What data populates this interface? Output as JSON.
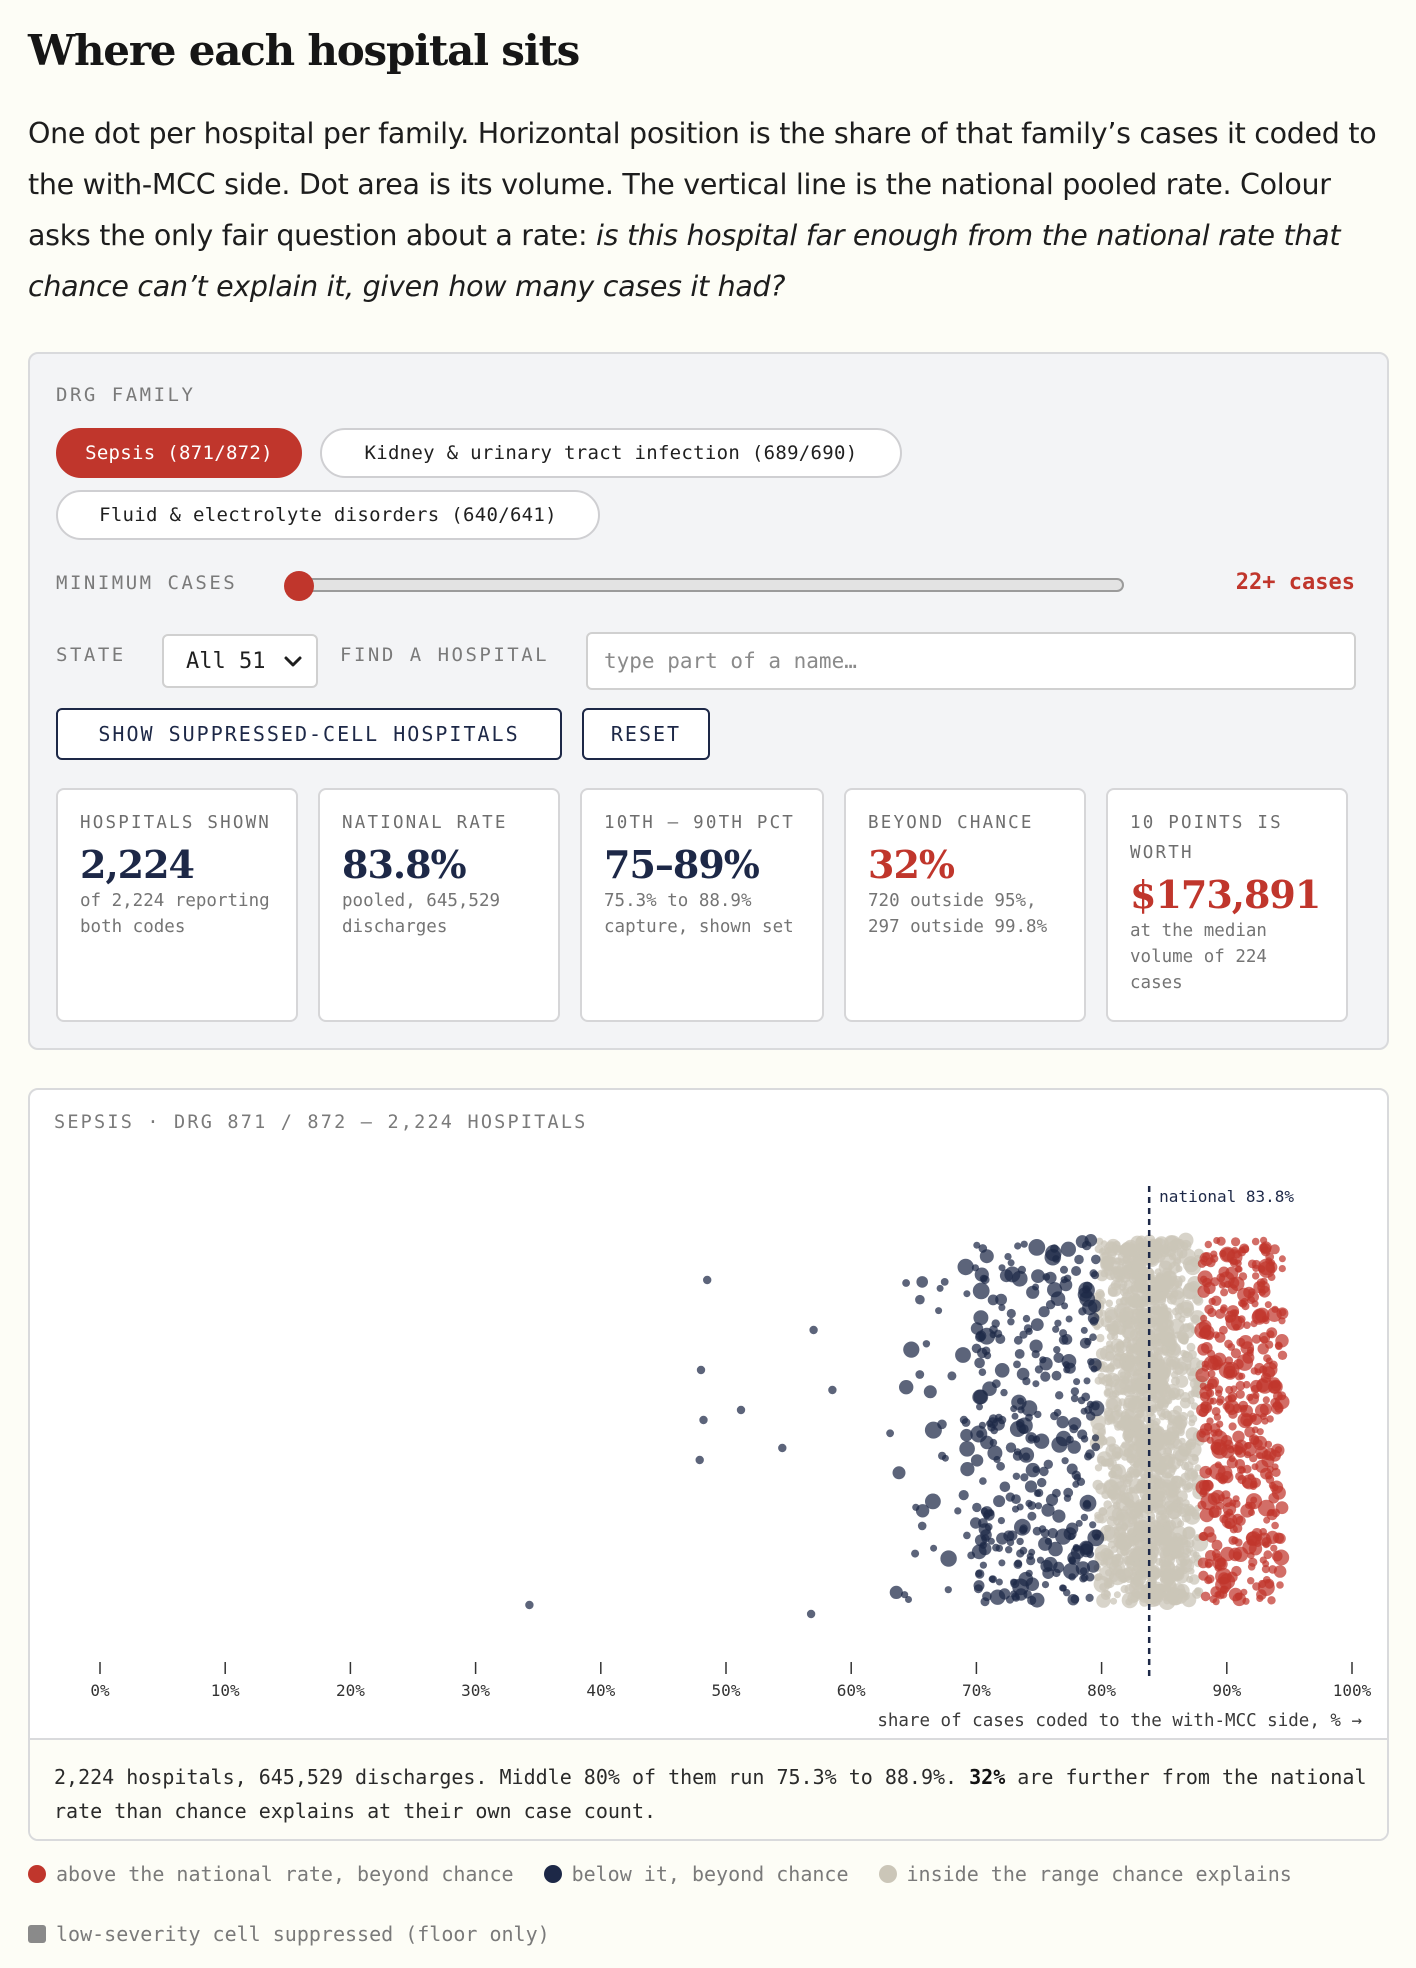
{
  "title": "Where each hospital sits",
  "lede": {
    "plain": "One dot per hospital per family. Horizontal position is the share of that family’s cases it coded to the with-MCC side. Dot area is its volume. The vertical line is the national pooled rate. Colour asks the only fair question about a rate: ",
    "emphasis": "is this hospital far enough from the national rate that chance can’t explain it, given how many cases it had?"
  },
  "controls": {
    "family_label": "DRG FAMILY",
    "families": [
      {
        "label": "Sepsis (871/872)",
        "active": true
      },
      {
        "label": "Kidney & urinary tract infection (689/690)",
        "active": false
      },
      {
        "label": "Fluid & electrolyte disorders (640/641)",
        "active": false
      }
    ],
    "min_cases_label": "MINIMUM CASES",
    "min_cases_value": "22+ cases",
    "min_cases_fraction": 0.0,
    "state_label": "STATE",
    "state_value": "All 51",
    "find_label": "FIND A HOSPITAL",
    "find_placeholder": "type part of a name…",
    "show_suppressed_label": "SHOW SUPPRESSED-CELL HOSPITALS",
    "reset_label": "RESET"
  },
  "stats": [
    {
      "label": "HOSPITALS SHOWN",
      "value": "2,224",
      "sub": "of 2,224 reporting both codes",
      "accent": false
    },
    {
      "label": "NATIONAL RATE",
      "value": "83.8%",
      "sub": "pooled, 645,529 discharges",
      "accent": false
    },
    {
      "label": "10TH – 90TH PCT",
      "value": "75–89%",
      "sub": "75.3% to 88.9% capture, shown set",
      "accent": false
    },
    {
      "label": "BEYOND CHANCE",
      "value": "32%",
      "sub": "720 outside 95%, 297 outside 99.8%",
      "accent": true
    },
    {
      "label": "10 POINTS IS WORTH",
      "value": "$173,891",
      "sub": "at the median volume of 224 cases",
      "accent": true
    }
  ],
  "chart": {
    "title": "SEPSIS · DRG 871 / 872 — 2,224 HOSPITALS",
    "summary_a": "2,224 hospitals, 645,529 discharges. Middle 80% of them run 75.3% to 88.9%. ",
    "summary_b": "32%",
    "summary_c": " are further from the national rate than chance explains at their own case count."
  },
  "chart_data": {
    "type": "scatter",
    "xlabel": "share of cases coded to the with-MCC side, % →",
    "xlim": [
      0,
      100
    ],
    "xticks": [
      "0%",
      "10%",
      "20%",
      "30%",
      "40%",
      "50%",
      "60%",
      "70%",
      "80%",
      "90%",
      "100%"
    ],
    "reference_line": {
      "x": 83.8,
      "label": "national 83.8%"
    },
    "n_hospitals": 2224,
    "outliers": [
      34.3,
      48.5,
      48.0,
      48.2,
      47.9,
      51.2,
      54.5,
      56.8,
      57.0,
      58.5
    ],
    "colors": {
      "above": "#c0362c",
      "below": "#1d2847",
      "inside": "#cbc6b8",
      "suppressed": "#8a8a8a"
    },
    "legend": [
      {
        "label": "above the national rate, beyond chance",
        "color": "#c0362c",
        "shape": "dot"
      },
      {
        "label": "below it, beyond chance",
        "color": "#1d2847",
        "shape": "dot"
      },
      {
        "label": "inside the range chance explains",
        "color": "#cbc6b8",
        "shape": "dot"
      },
      {
        "label": "low-severity cell suppressed (floor only)",
        "color": "#8a8a8a",
        "shape": "square"
      }
    ]
  }
}
